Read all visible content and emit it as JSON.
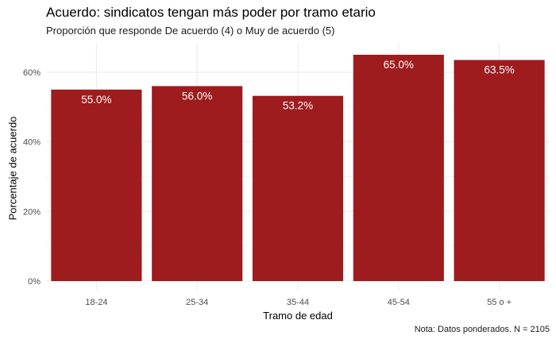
{
  "chart_data": {
    "type": "bar",
    "title": "Acuerdo: sindicatos tengan más poder por tramo etario",
    "subtitle": "Proporción que responde De acuerdo (4) o Muy de acuerdo (5)",
    "xlabel": "Tramo de edad",
    "ylabel": "Porcentaje de acuerdo",
    "caption": "Nota: Datos ponderados. N = 2105",
    "categories": [
      "18-24",
      "25-34",
      "35-44",
      "45-54",
      "55 o +"
    ],
    "values": [
      55.0,
      56.0,
      53.2,
      65.0,
      63.5
    ],
    "data_labels": [
      "55.0%",
      "56.0%",
      "53.2%",
      "65.0%",
      "63.5%"
    ],
    "y_ticks": [
      0,
      20,
      40,
      60
    ],
    "y_tick_labels": [
      "0%",
      "20%",
      "40%",
      "60%"
    ],
    "ylim": [
      0,
      68.25
    ],
    "grid": true,
    "bar_color": "#9E1B1E",
    "grid_color": "#EBEBEB"
  }
}
